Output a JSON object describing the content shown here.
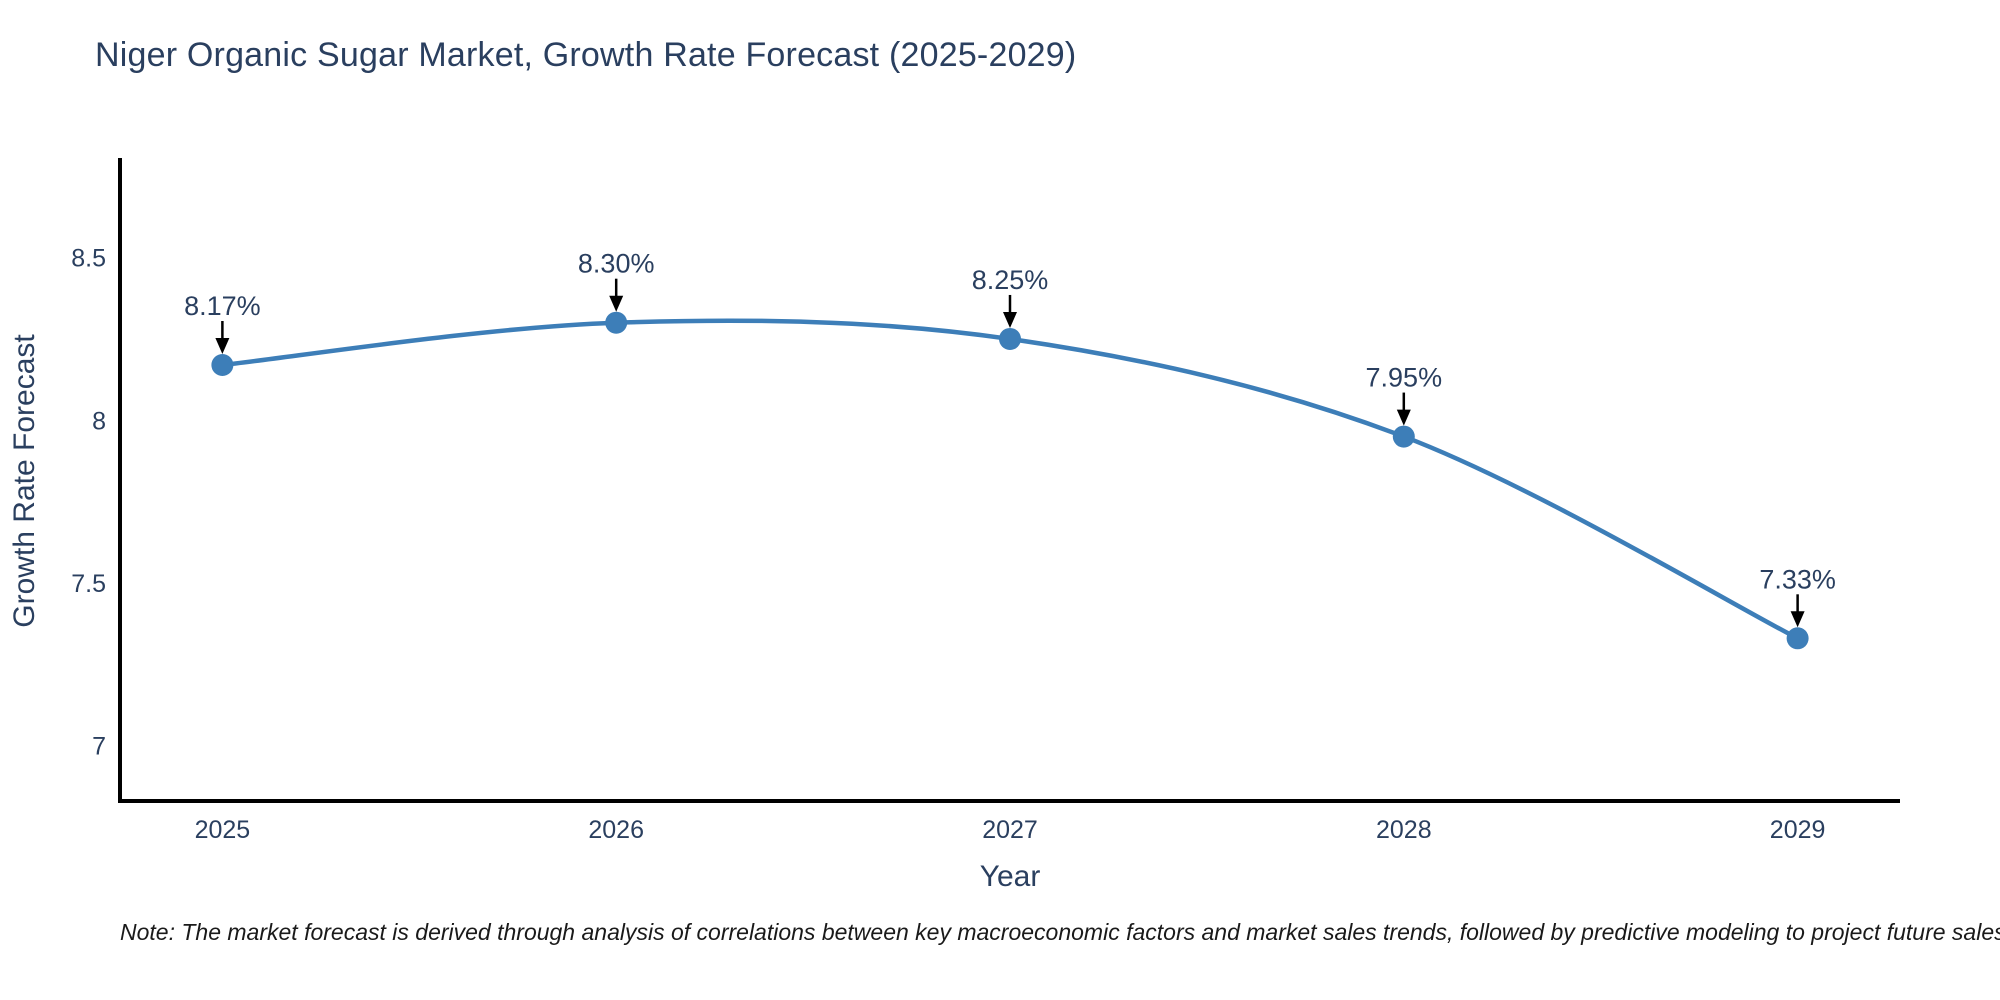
{
  "header": {
    "title": "Niger Organic Sugar Market, Growth Rate Forecast (2025-2029)",
    "title_color": "#2a3f5f"
  },
  "chart_data": {
    "type": "line",
    "title": "Niger Organic Sugar Market, Growth Rate Forecast (2025-2029)",
    "line_shape": "spline",
    "categories": [
      "2025",
      "2026",
      "2027",
      "2028",
      "2029"
    ],
    "series": [
      {
        "name": "Growth Rate Forecast",
        "values": [
          8.17,
          8.3,
          8.25,
          7.95,
          7.33
        ]
      }
    ],
    "point_labels": [
      "8.17%",
      "8.30%",
      "8.25%",
      "7.95%",
      "7.33%"
    ],
    "annotations": "black down-arrows from each percentage label to its data point",
    "xlabel": "Year",
    "ylabel": "Growth Rate Forecast",
    "yticks": {
      "values": [
        7,
        7.5,
        8,
        8.5
      ],
      "labels": [
        "7",
        "7.5",
        "8",
        "8.5"
      ]
    },
    "xlim": [
      2024.74,
      2029.26
    ],
    "ylim": [
      6.83,
      8.8
    ],
    "grid": false,
    "legend": false,
    "background": "#ffffff",
    "line_color": "#3d7eb8",
    "marker_color": "#3d7eb8",
    "marker_size": 11,
    "axis_color": "#000000",
    "text_color": "#2a3f5f"
  },
  "footer": {
    "note": "Note: The market forecast is derived through analysis of correlations between key macroeconomic factors and market sales trends, followed by predictive modeling to project future sales"
  }
}
